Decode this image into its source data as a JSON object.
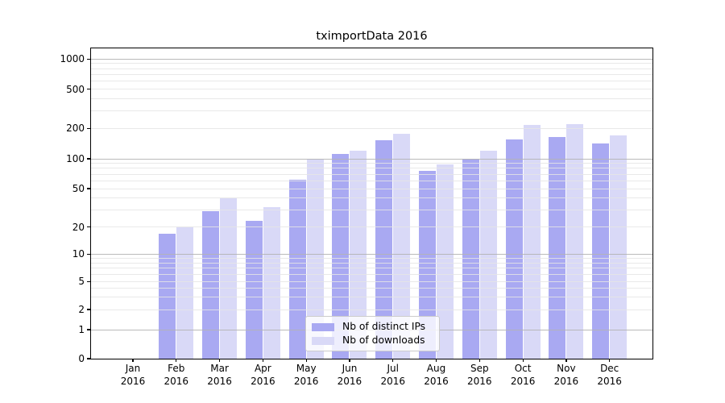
{
  "chart_data": {
    "type": "bar",
    "title": "tximportData 2016",
    "categories": [
      "Jan",
      "Feb",
      "Mar",
      "Apr",
      "May",
      "Jun",
      "Jul",
      "Aug",
      "Sep",
      "Oct",
      "Nov",
      "Dec"
    ],
    "category_year": "2016",
    "series": [
      {
        "name": "Nb of distinct IPs",
        "color": "#a9a9f2",
        "values": [
          0,
          17,
          29,
          23,
          62,
          111,
          153,
          76,
          100,
          155,
          164,
          141
        ]
      },
      {
        "name": "Nb of downloads",
        "color": "#d9d9f7",
        "values": [
          0,
          20,
          40,
          32,
          100,
          121,
          177,
          88,
          120,
          215,
          221,
          170
        ]
      }
    ],
    "y_ticks": [
      0,
      1,
      2,
      5,
      10,
      20,
      50,
      100,
      200,
      500,
      1000
    ],
    "y_scale": "log",
    "ylim": [
      0,
      1300
    ],
    "xlabel": "",
    "ylabel": "",
    "grid": "on",
    "legend_position": "lower-center",
    "colors": {
      "bar_distinct_ips": "#a9a9f2",
      "bar_downloads": "#d9d9f7",
      "major_grid": "#bdbdbd",
      "minor_grid": "#e9e9e9",
      "axis": "#000000",
      "background": "#ffffff"
    }
  }
}
